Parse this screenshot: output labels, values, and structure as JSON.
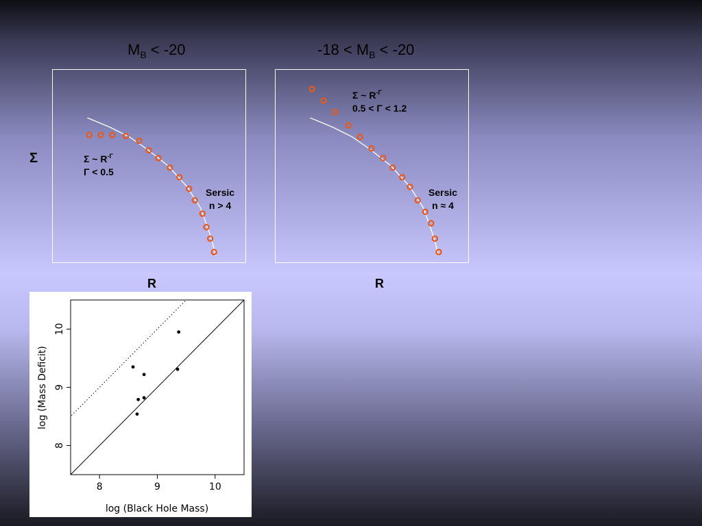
{
  "slide": {
    "left_title": {
      "pre": "M",
      "sub": "B",
      "post": " < -20"
    },
    "right_title": {
      "pre": "-18 < M",
      "sub": "B",
      "post": " < -20"
    },
    "y_axis_label": "Σ",
    "left_x_label": "R",
    "right_x_label": "R"
  },
  "left_panel": {
    "law_line1": "Σ ~ R",
    "law_exp": "-Γ",
    "law_line2": "Γ < 0.5",
    "sersic_line1": "Sersic",
    "sersic_line2": "n > 4"
  },
  "right_panel": {
    "law_line1": "Σ ~ R",
    "law_exp": "-Γ",
    "law_line2": "0.5 < Γ < 1.2",
    "sersic_line1": "Sersic",
    "sersic_line2": "n ≈ 4"
  },
  "colors": {
    "marker": "#e85a1c",
    "curve": "#ffffff",
    "panel_border": "#ffffff"
  },
  "chart_data": [
    {
      "type": "scatter",
      "id": "profile-left",
      "note": "Schematic surface-brightness profile (Σ vs R); axes carry no ticks",
      "xlabel": "R",
      "ylabel": "Σ",
      "xlim": [
        0,
        10
      ],
      "ylim": [
        0,
        10
      ],
      "points": [
        [
          1.9,
          6.6
        ],
        [
          2.5,
          6.6
        ],
        [
          3.1,
          6.6
        ],
        [
          3.8,
          6.55
        ],
        [
          4.5,
          6.3
        ],
        [
          5.0,
          5.8
        ],
        [
          5.5,
          5.4
        ],
        [
          6.1,
          4.9
        ],
        [
          6.6,
          4.4
        ],
        [
          7.1,
          3.8
        ],
        [
          7.4,
          3.2
        ],
        [
          7.8,
          2.5
        ],
        [
          8.0,
          1.8
        ],
        [
          8.2,
          1.2
        ],
        [
          8.4,
          0.5
        ]
      ],
      "curve": [
        [
          1.8,
          7.5
        ],
        [
          3.0,
          7.0
        ],
        [
          4.0,
          6.5
        ],
        [
          5.0,
          5.8
        ],
        [
          6.0,
          5.0
        ],
        [
          7.0,
          3.9
        ],
        [
          7.7,
          2.8
        ],
        [
          8.2,
          1.4
        ],
        [
          8.5,
          0.3
        ]
      ]
    },
    {
      "type": "scatter",
      "id": "profile-right",
      "note": "Schematic surface-brightness profile (Σ vs R); axes carry no ticks",
      "xlabel": "R",
      "ylabel": "Σ",
      "xlim": [
        0,
        10
      ],
      "ylim": [
        0,
        10
      ],
      "points": [
        [
          1.9,
          9.0
        ],
        [
          2.5,
          8.4
        ],
        [
          3.1,
          7.8
        ],
        [
          3.8,
          7.1
        ],
        [
          4.4,
          6.5
        ],
        [
          5.0,
          5.9
        ],
        [
          5.6,
          5.4
        ],
        [
          6.1,
          4.9
        ],
        [
          6.6,
          4.4
        ],
        [
          7.0,
          3.9
        ],
        [
          7.4,
          3.2
        ],
        [
          7.8,
          2.6
        ],
        [
          8.1,
          2.0
        ],
        [
          8.3,
          1.2
        ],
        [
          8.5,
          0.5
        ]
      ],
      "curve": [
        [
          1.8,
          7.5
        ],
        [
          3.0,
          7.0
        ],
        [
          4.0,
          6.5
        ],
        [
          5.0,
          5.8
        ],
        [
          6.0,
          5.0
        ],
        [
          7.0,
          3.9
        ],
        [
          7.7,
          2.8
        ],
        [
          8.2,
          1.4
        ],
        [
          8.5,
          0.3
        ]
      ]
    },
    {
      "type": "scatter",
      "id": "mass-deficit",
      "xlabel": "log (Black Hole Mass)",
      "ylabel": "log (Mass Deficit)",
      "xlim": [
        7.5,
        10.5
      ],
      "ylim": [
        7.5,
        10.5
      ],
      "xticks": [
        8,
        9,
        10
      ],
      "yticks": [
        8,
        9,
        10
      ],
      "points": [
        [
          8.58,
          9.35
        ],
        [
          8.77,
          9.22
        ],
        [
          8.67,
          8.79
        ],
        [
          8.77,
          8.82
        ],
        [
          8.65,
          8.54
        ],
        [
          9.37,
          9.95
        ],
        [
          9.35,
          9.31
        ]
      ],
      "lines": [
        {
          "style": "solid",
          "slope": 1,
          "intercept": 0
        },
        {
          "style": "dotted",
          "slope": 1,
          "intercept": 1
        }
      ]
    }
  ]
}
